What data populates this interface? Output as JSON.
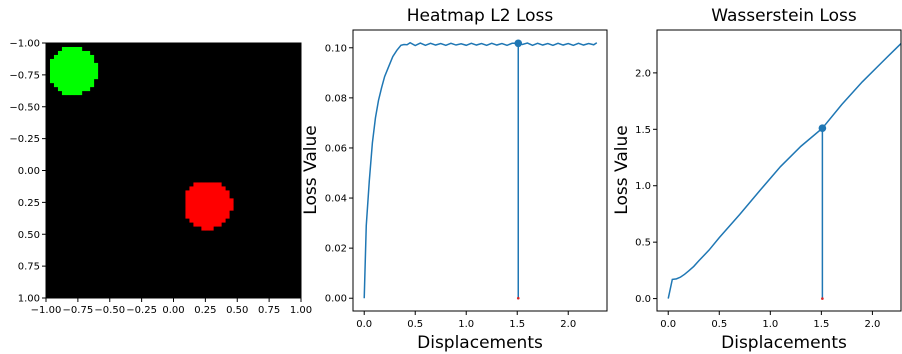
{
  "chart_data": [
    {
      "type": "heatmap",
      "title": "",
      "xlim": [
        -1.0,
        1.0
      ],
      "ylim": [
        1.0,
        -1.0
      ],
      "x_ticks": [
        "−1.00",
        "−0.75",
        "−0.50",
        "−0.25",
        "0.00",
        "0.25",
        "0.50",
        "0.75",
        "1.00"
      ],
      "y_ticks": [
        "−1.00",
        "−0.75",
        "−0.50",
        "−0.25",
        "0.00",
        "0.25",
        "0.50",
        "0.75",
        "1.00"
      ],
      "background_color": "#000000",
      "blobs": [
        {
          "color": "#00ff00",
          "center": [
            -0.79,
            -0.78
          ],
          "radius": 0.19
        },
        {
          "color": "#ff0000",
          "center": [
            0.27,
            0.27
          ],
          "radius": 0.19
        }
      ]
    },
    {
      "type": "line",
      "title": "Heatmap L2 Loss",
      "xlabel": "Displacements",
      "ylabel": "Loss Value",
      "xlim": [
        -0.11,
        2.38
      ],
      "ylim": [
        -0.0051,
        0.1071
      ],
      "x_ticks": [
        "0.0",
        "0.5",
        "1.0",
        "1.5",
        "2.0"
      ],
      "y_ticks": [
        "0.00",
        "0.02",
        "0.04",
        "0.06",
        "0.08",
        "0.10"
      ],
      "color": "#1f77b4",
      "x": [
        0.0,
        0.02,
        0.05,
        0.08,
        0.11,
        0.14,
        0.17,
        0.2,
        0.24,
        0.28,
        0.32,
        0.36,
        0.39,
        0.42,
        0.45,
        0.5,
        0.55,
        0.6,
        0.65,
        0.7,
        0.75,
        0.8,
        0.85,
        0.9,
        0.95,
        1.0,
        1.05,
        1.1,
        1.15,
        1.2,
        1.25,
        1.3,
        1.35,
        1.4,
        1.45,
        1.5,
        1.55,
        1.6,
        1.65,
        1.7,
        1.75,
        1.8,
        1.85,
        1.9,
        1.95,
        2.0,
        2.05,
        2.1,
        2.15,
        2.2,
        2.25,
        2.28
      ],
      "y": [
        0.0,
        0.029,
        0.047,
        0.062,
        0.072,
        0.079,
        0.084,
        0.0885,
        0.0925,
        0.0965,
        0.099,
        0.101,
        0.1013,
        0.1012,
        0.102,
        0.1009,
        0.1019,
        0.101,
        0.1018,
        0.1011,
        0.1017,
        0.101,
        0.1018,
        0.1011,
        0.1016,
        0.101,
        0.1018,
        0.1011,
        0.1017,
        0.101,
        0.1018,
        0.1011,
        0.1017,
        0.101,
        0.1018,
        0.1018,
        0.1013,
        0.1019,
        0.101,
        0.1018,
        0.1011,
        0.1017,
        0.101,
        0.1018,
        0.1011,
        0.1017,
        0.101,
        0.1018,
        0.1011,
        0.1017,
        0.1012,
        0.102
      ],
      "marker": {
        "x": 1.51,
        "y": 0.1018
      }
    },
    {
      "type": "line",
      "title": "Wasserstein Loss",
      "xlabel": "Displacements",
      "ylabel": "Loss Value",
      "xlim": [
        -0.11,
        2.28
      ],
      "ylim": [
        -0.11,
        2.38
      ],
      "x_ticks": [
        "0.0",
        "0.5",
        "1.0",
        "1.5",
        "2.0"
      ],
      "y_ticks": [
        "0.0",
        "0.5",
        "1.0",
        "1.5",
        "2.0"
      ],
      "color": "#1f77b4",
      "x": [
        0.0,
        0.04,
        0.08,
        0.12,
        0.16,
        0.2,
        0.25,
        0.3,
        0.4,
        0.5,
        0.7,
        0.9,
        1.1,
        1.3,
        1.51,
        1.7,
        1.9,
        2.1,
        2.28
      ],
      "y": [
        0.0,
        0.17,
        0.175,
        0.19,
        0.215,
        0.245,
        0.285,
        0.335,
        0.43,
        0.54,
        0.745,
        0.96,
        1.17,
        1.35,
        1.51,
        1.72,
        1.92,
        2.1,
        2.26
      ],
      "marker": {
        "x": 1.51,
        "y": 1.51
      }
    }
  ]
}
